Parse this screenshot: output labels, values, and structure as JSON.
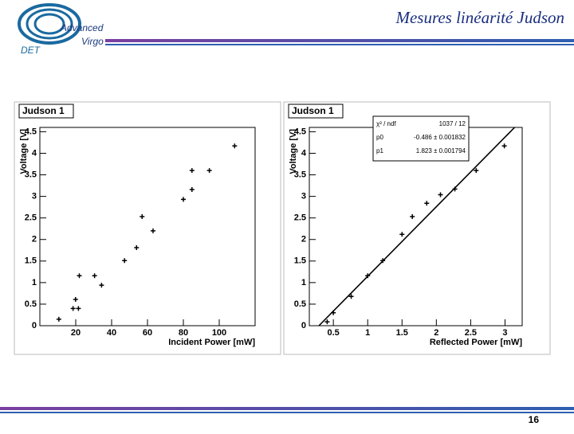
{
  "header": {
    "title": "Mesures linéarité Judson",
    "logo_line1": "Advanced",
    "logo_line2": "Virgo",
    "logo_group": "DET"
  },
  "page_number": "16",
  "chart_data": [
    {
      "type": "scatter",
      "title": "Judson 1",
      "x_label": "Incident Power [mW]",
      "y_label": "Voltage [V]",
      "xlim": [
        0,
        120
      ],
      "ylim": [
        0,
        4.6
      ],
      "xticks": [
        20,
        40,
        60,
        80,
        100
      ],
      "yticks": [
        0,
        0.5,
        1,
        1.5,
        2,
        2.5,
        3,
        3.5,
        4,
        4.5
      ],
      "color": "#000000",
      "series": [
        {
          "x": [
            10.6,
            19.9,
            18.5,
            21.5,
            22,
            30.5,
            34.4,
            47.2,
            53.9,
            57,
            63.1,
            80,
            84.8,
            84.8,
            94.5,
            108.6
          ],
          "values": [
            0.15,
            0.61,
            0.4,
            0.4,
            1.16,
            1.16,
            0.94,
            1.51,
            1.81,
            2.53,
            2.2,
            2.93,
            3.16,
            3.6,
            3.6,
            4.17
          ]
        }
      ]
    },
    {
      "type": "scatter",
      "title": "Judson 1",
      "x_label": "Reflected Power [mW]",
      "y_label": "Voltage [V]",
      "xlim": [
        0.15,
        3.25
      ],
      "ylim": [
        0,
        4.6
      ],
      "xticks": [
        0.5,
        1,
        1.5,
        2,
        2.5,
        3
      ],
      "yticks": [
        0,
        0.5,
        1,
        1.5,
        2,
        2.5,
        3,
        3.5,
        4,
        4.5
      ],
      "color": "#000000",
      "series": [
        {
          "x": [
            0.41,
            0.5,
            0.76,
            1.0,
            1.22,
            1.5,
            1.65,
            1.86,
            2.06,
            2.27,
            2.58,
            2.99
          ],
          "values": [
            0.09,
            0.3,
            0.68,
            1.16,
            1.51,
            2.12,
            2.53,
            2.84,
            3.04,
            3.17,
            3.6,
            4.17
          ]
        }
      ],
      "fit": {
        "x": [
          0.29,
          3.14
        ],
        "values": [
          0,
          4.6
        ]
      },
      "stats": [
        [
          "χ² / ndf",
          "1037 / 12"
        ],
        [
          "p0",
          "-0.486 ± 0.001832"
        ],
        [
          "p1",
          "1.823 ± 0.001794"
        ]
      ]
    }
  ]
}
